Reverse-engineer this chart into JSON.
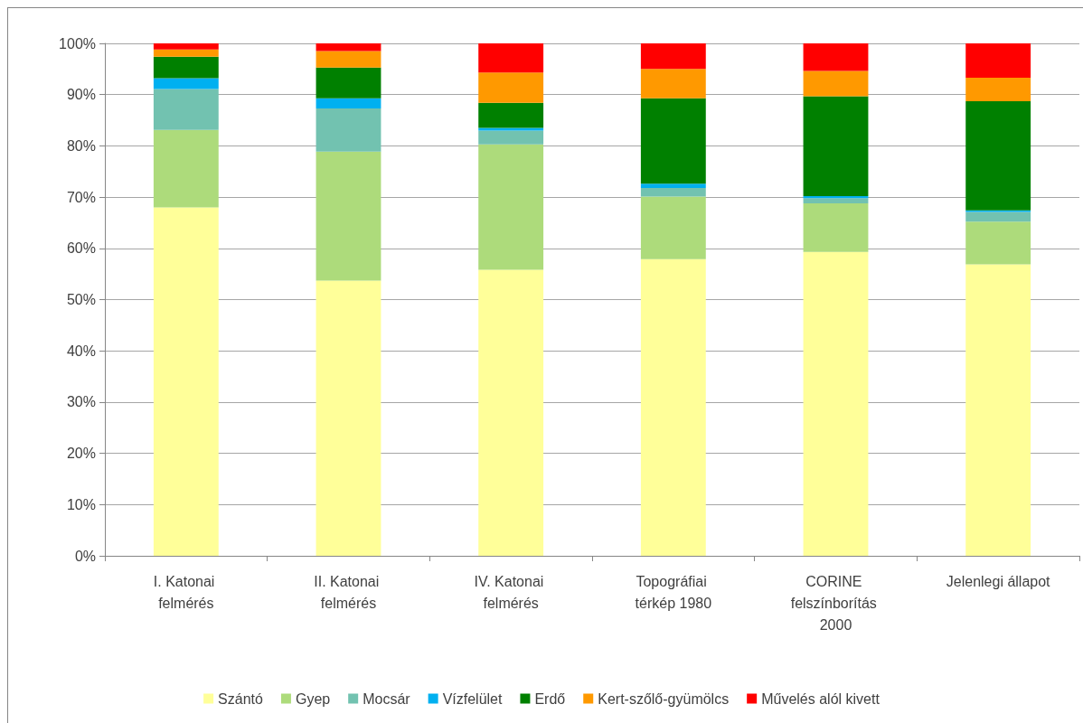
{
  "chart_data": {
    "type": "bar",
    "stacked": true,
    "categories": [
      "I. Katonai felmérés",
      "II. Katonai felmérés",
      "IV. Katonai felmérés",
      "Topográfiai térkép 1980",
      "CORINE felszínborítás 2000",
      "Jelenlegi állapot"
    ],
    "series": [
      {
        "name": "Szántó",
        "color": "#ffff99",
        "values": [
          68.0,
          53.7,
          55.8,
          57.9,
          59.3,
          56.9
        ]
      },
      {
        "name": "Gyep",
        "color": "#addb7b",
        "values": [
          15.1,
          25.2,
          24.5,
          12.2,
          9.5,
          8.3
        ]
      },
      {
        "name": "Mocsár",
        "color": "#72c2b0",
        "values": [
          8.0,
          8.4,
          2.7,
          1.7,
          1.0,
          1.9
        ]
      },
      {
        "name": "Vízfelület",
        "color": "#00b0f0",
        "values": [
          2.1,
          2.0,
          0.5,
          0.8,
          0.4,
          0.3
        ]
      },
      {
        "name": "Erdő",
        "color": "#008000",
        "values": [
          4.2,
          6.0,
          4.9,
          16.7,
          19.5,
          21.3
        ]
      },
      {
        "name": "Kert-szőlő-gyümölcs",
        "color": "#ff9900",
        "values": [
          1.4,
          3.2,
          5.9,
          5.7,
          4.9,
          4.6
        ]
      },
      {
        "name": "Művelés alól kivett",
        "color": "#ff0000",
        "values": [
          1.2,
          1.5,
          5.7,
          5.0,
          5.4,
          6.7
        ]
      }
    ],
    "ylim": [
      0,
      100
    ],
    "yticks": [
      {
        "value": 0,
        "label": "0%"
      },
      {
        "value": 10,
        "label": "10%"
      },
      {
        "value": 20,
        "label": "20%"
      },
      {
        "value": 30,
        "label": "30%"
      },
      {
        "value": 40,
        "label": "40%"
      },
      {
        "value": 50,
        "label": "50%"
      },
      {
        "value": 60,
        "label": "60%"
      },
      {
        "value": 70,
        "label": "70%"
      },
      {
        "value": 80,
        "label": "80%"
      },
      {
        "value": 90,
        "label": "90%"
      },
      {
        "value": 100,
        "label": "100%"
      }
    ],
    "grid": "y",
    "legend": "bottom"
  }
}
